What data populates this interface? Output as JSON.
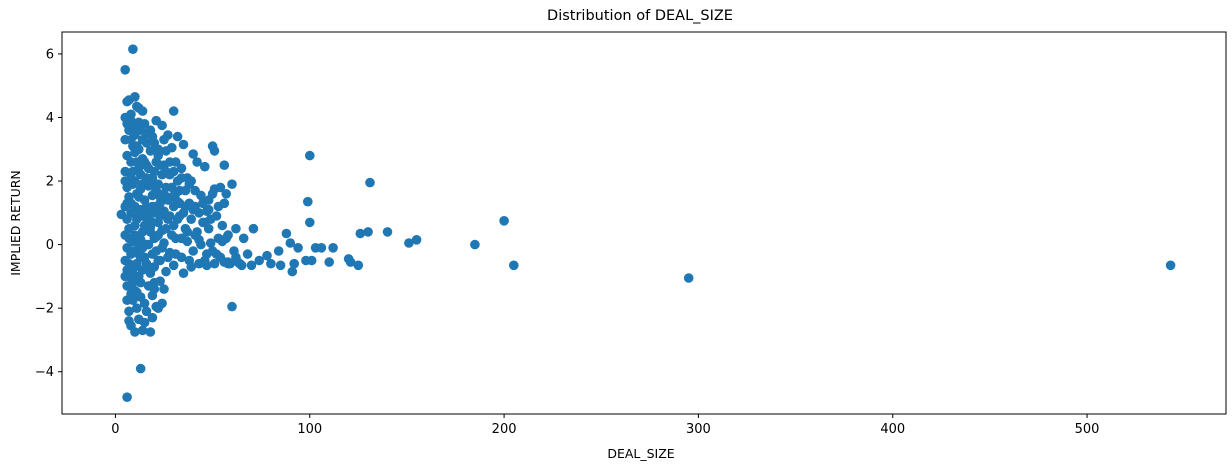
{
  "chart_data": {
    "type": "scatter",
    "title": "Distribution of DEAL_SIZE",
    "xlabel": "DEAL_SIZE",
    "ylabel": "IMPLIED RETURN",
    "xlim": [
      -27.5,
      571.5
    ],
    "ylim": [
      -5.33,
      6.69
    ],
    "xticks": [
      0,
      100,
      200,
      300,
      400,
      500
    ],
    "yticks": [
      -4,
      -2,
      0,
      2,
      4,
      6
    ],
    "ytick_labels": [
      "−4",
      "−2",
      "0",
      "2",
      "4",
      "6"
    ],
    "grid": false,
    "legend": "none",
    "marker_color": "#1f77b4",
    "points": [
      [
        3,
        0.95
      ],
      [
        5,
        5.5
      ],
      [
        6,
        4.5
      ],
      [
        7,
        4.55
      ],
      [
        9,
        6.15
      ],
      [
        10,
        4.65
      ],
      [
        11,
        4.35
      ],
      [
        12,
        4.3
      ],
      [
        8,
        4.1
      ],
      [
        14,
        4.2
      ],
      [
        6,
        -4.8
      ],
      [
        13,
        -3.9
      ],
      [
        8,
        -2.55
      ],
      [
        10,
        -2.75
      ],
      [
        14,
        -2.7
      ],
      [
        18,
        -2.75
      ],
      [
        12,
        -2.35
      ],
      [
        15,
        -2.45
      ],
      [
        19,
        -2.3
      ],
      [
        6,
        -1.75
      ],
      [
        9,
        -1.75
      ],
      [
        11,
        -2.0
      ],
      [
        15,
        -1.85
      ],
      [
        21,
        -1.95
      ],
      [
        24,
        -1.85
      ],
      [
        7,
        -2.1
      ],
      [
        8,
        -1.55
      ],
      [
        10,
        -1.45
      ],
      [
        13,
        -1.65
      ],
      [
        17,
        -1.3
      ],
      [
        20,
        -1.2
      ],
      [
        23,
        -1.15
      ],
      [
        25,
        -1.4
      ],
      [
        22,
        -2.0
      ],
      [
        6,
        3.8
      ],
      [
        7,
        3.6
      ],
      [
        8,
        3.9
      ],
      [
        9,
        3.75
      ],
      [
        10,
        3.45
      ],
      [
        11,
        3.7
      ],
      [
        12,
        3.85
      ],
      [
        13,
        3.6
      ],
      [
        15,
        3.8
      ],
      [
        16,
        3.5
      ],
      [
        19,
        3.4
      ],
      [
        21,
        3.9
      ],
      [
        24,
        3.75
      ],
      [
        27,
        3.45
      ],
      [
        30,
        4.2
      ],
      [
        32,
        3.4
      ],
      [
        29,
        3.05
      ],
      [
        35,
        3.15
      ],
      [
        50,
        3.1
      ],
      [
        51,
        2.95
      ],
      [
        6,
        2.8
      ],
      [
        8,
        2.6
      ],
      [
        10,
        2.9
      ],
      [
        12,
        2.4
      ],
      [
        14,
        2.7
      ],
      [
        16,
        2.5
      ],
      [
        18,
        2.95
      ],
      [
        20,
        2.3
      ],
      [
        22,
        2.8
      ],
      [
        25,
        2.5
      ],
      [
        28,
        2.2
      ],
      [
        31,
        2.6
      ],
      [
        34,
        2.4
      ],
      [
        40,
        2.85
      ],
      [
        42,
        2.6
      ],
      [
        46,
        2.45
      ],
      [
        56,
        2.5
      ],
      [
        37,
        2.1
      ],
      [
        26,
        2.95
      ],
      [
        6,
        1.8
      ],
      [
        7,
        1.5
      ],
      [
        9,
        1.9
      ],
      [
        11,
        1.6
      ],
      [
        13,
        1.75
      ],
      [
        15,
        1.4
      ],
      [
        17,
        1.85
      ],
      [
        19,
        1.55
      ],
      [
        21,
        1.7
      ],
      [
        23,
        1.3
      ],
      [
        26,
        1.8
      ],
      [
        29,
        1.5
      ],
      [
        33,
        1.7
      ],
      [
        38,
        1.9
      ],
      [
        41,
        1.7
      ],
      [
        44,
        1.55
      ],
      [
        48,
        1.4
      ],
      [
        51,
        1.75
      ],
      [
        54,
        1.8
      ],
      [
        57,
        1.6
      ],
      [
        60,
        1.9
      ],
      [
        32,
        1.35
      ],
      [
        36,
        1.2
      ],
      [
        47,
        1.05
      ],
      [
        6,
        0.8
      ],
      [
        7,
        0.5
      ],
      [
        8,
        1.0
      ],
      [
        10,
        0.6
      ],
      [
        12,
        0.9
      ],
      [
        14,
        0.4
      ],
      [
        16,
        0.85
      ],
      [
        18,
        0.55
      ],
      [
        20,
        1.0
      ],
      [
        22,
        0.7
      ],
      [
        24,
        0.45
      ],
      [
        27,
        0.8
      ],
      [
        30,
        0.6
      ],
      [
        33,
        0.9
      ],
      [
        36,
        0.5
      ],
      [
        39,
        0.8
      ],
      [
        42,
        0.4
      ],
      [
        45,
        0.7
      ],
      [
        48,
        0.5
      ],
      [
        52,
        0.9
      ],
      [
        55,
        0.6
      ],
      [
        58,
        0.3
      ],
      [
        62,
        0.5
      ],
      [
        66,
        0.2
      ],
      [
        71,
        0.5
      ],
      [
        25,
        1.05
      ],
      [
        40,
        1.1
      ],
      [
        6,
        -0.1
      ],
      [
        7,
        0.2
      ],
      [
        8,
        -0.3
      ],
      [
        9,
        0.1
      ],
      [
        11,
        -0.2
      ],
      [
        13,
        0.15
      ],
      [
        15,
        -0.4
      ],
      [
        17,
        0.0
      ],
      [
        19,
        -0.3
      ],
      [
        21,
        0.25
      ],
      [
        23,
        -0.5
      ],
      [
        25,
        0.05
      ],
      [
        28,
        -0.25
      ],
      [
        31,
        0.2
      ],
      [
        34,
        -0.4
      ],
      [
        37,
        0.1
      ],
      [
        40,
        -0.2
      ],
      [
        43,
        0.15
      ],
      [
        46,
        -0.5
      ],
      [
        49,
        0.05
      ],
      [
        52,
        -0.3
      ],
      [
        55,
        0.1
      ],
      [
        58,
        -0.55
      ],
      [
        61,
        -0.2
      ],
      [
        64,
        -0.6
      ],
      [
        68,
        -0.3
      ],
      [
        6,
        -0.8
      ],
      [
        7,
        -0.6
      ],
      [
        9,
        -0.9
      ],
      [
        10,
        -0.7
      ],
      [
        12,
        -1.0
      ],
      [
        14,
        -0.8
      ],
      [
        16,
        -0.6
      ],
      [
        18,
        -0.9
      ],
      [
        20,
        -0.7
      ],
      [
        22,
        -0.5
      ],
      [
        26,
        -0.85
      ],
      [
        30,
        -0.65
      ],
      [
        35,
        -0.9
      ],
      [
        39,
        -0.7
      ],
      [
        43,
        -0.6
      ],
      [
        47,
        -0.65
      ],
      [
        51,
        -0.6
      ],
      [
        56,
        -0.55
      ],
      [
        59,
        -0.6
      ],
      [
        65,
        -0.65
      ],
      [
        70,
        -0.65
      ],
      [
        74,
        -0.5
      ],
      [
        78,
        -0.35
      ],
      [
        80,
        -0.6
      ],
      [
        84,
        -0.2
      ],
      [
        85,
        -0.65
      ],
      [
        88,
        0.35
      ],
      [
        90,
        0.05
      ],
      [
        91,
        -0.85
      ],
      [
        92,
        -0.6
      ],
      [
        94,
        -0.1
      ],
      [
        98,
        -0.5
      ],
      [
        99,
        1.35
      ],
      [
        100,
        2.8
      ],
      [
        100,
        0.7
      ],
      [
        101,
        -0.5
      ],
      [
        103,
        -0.1
      ],
      [
        106,
        -0.1
      ],
      [
        110,
        -0.55
      ],
      [
        112,
        -0.1
      ],
      [
        120,
        -0.45
      ],
      [
        121,
        -0.55
      ],
      [
        125,
        -0.65
      ],
      [
        126,
        0.35
      ],
      [
        130,
        0.4
      ],
      [
        131,
        1.95
      ],
      [
        140,
        0.4
      ],
      [
        151,
        0.05
      ],
      [
        155,
        0.15
      ],
      [
        185,
        0.0
      ],
      [
        200,
        0.75
      ],
      [
        205,
        -0.65
      ],
      [
        295,
        -1.05
      ],
      [
        543,
        -0.65
      ],
      [
        60,
        -1.95
      ],
      [
        58,
        -0.6
      ],
      [
        63,
        -0.55
      ],
      [
        5,
        4.0
      ],
      [
        5,
        2.3
      ],
      [
        5,
        1.2
      ],
      [
        5,
        0.3
      ],
      [
        5,
        -0.5
      ],
      [
        5,
        -1.0
      ],
      [
        5,
        3.3
      ],
      [
        5,
        2.0
      ],
      [
        6,
        1.3
      ],
      [
        6,
        -1.3
      ],
      [
        8,
        3.3
      ],
      [
        8,
        2.1
      ],
      [
        8,
        1.3
      ],
      [
        8,
        0.2
      ],
      [
        8,
        -0.9
      ],
      [
        9,
        3.1
      ],
      [
        9,
        2.3
      ],
      [
        9,
        1.0
      ],
      [
        9,
        -0.2
      ],
      [
        10,
        2.0
      ],
      [
        10,
        1.2
      ],
      [
        10,
        0.3
      ],
      [
        10,
        -1.1
      ],
      [
        11,
        3.1
      ],
      [
        11,
        2.6
      ],
      [
        11,
        0.8
      ],
      [
        11,
        -0.6
      ],
      [
        12,
        3.0
      ],
      [
        12,
        1.5
      ],
      [
        12,
        0.0
      ],
      [
        13,
        2.2
      ],
      [
        13,
        1.1
      ],
      [
        13,
        -0.4
      ],
      [
        14,
        3.3
      ],
      [
        14,
        1.9
      ],
      [
        14,
        0.9
      ],
      [
        14,
        -0.1
      ],
      [
        15,
        2.6
      ],
      [
        15,
        1.1
      ],
      [
        15,
        0.6
      ],
      [
        16,
        3.2
      ],
      [
        16,
        2.1
      ],
      [
        16,
        1.2
      ],
      [
        16,
        0.0
      ],
      [
        17,
        2.4
      ],
      [
        17,
        1.0
      ],
      [
        17,
        -0.7
      ],
      [
        18,
        3.6
      ],
      [
        18,
        1.9
      ],
      [
        18,
        0.4
      ],
      [
        19,
        2.1
      ],
      [
        19,
        1.2
      ],
      [
        19,
        0.7
      ],
      [
        20,
        3.2
      ],
      [
        20,
        1.6
      ],
      [
        20,
        0.2
      ],
      [
        21,
        2.6
      ],
      [
        21,
        1.2
      ],
      [
        21,
        -0.2
      ],
      [
        22,
        3.0
      ],
      [
        22,
        1.9
      ],
      [
        22,
        0.3
      ],
      [
        23,
        2.5
      ],
      [
        23,
        1.5
      ],
      [
        23,
        0.9
      ],
      [
        24,
        2.2
      ],
      [
        24,
        1.0
      ],
      [
        24,
        -0.1
      ],
      [
        25,
        3.3
      ],
      [
        25,
        1.6
      ],
      [
        26,
        2.3
      ],
      [
        26,
        0.5
      ],
      [
        27,
        1.4
      ],
      [
        27,
        -0.4
      ],
      [
        28,
        2.6
      ],
      [
        28,
        0.9
      ],
      [
        29,
        1.8
      ],
      [
        29,
        0.3
      ],
      [
        30,
        2.3
      ],
      [
        30,
        1.2
      ],
      [
        31,
        1.6
      ],
      [
        31,
        -0.3
      ],
      [
        32,
        2.0
      ],
      [
        32,
        0.8
      ],
      [
        33,
        1.3
      ],
      [
        34,
        2.1
      ],
      [
        34,
        0.2
      ],
      [
        35,
        1.0
      ],
      [
        36,
        1.7
      ],
      [
        37,
        0.4
      ],
      [
        38,
        1.3
      ],
      [
        38,
        -0.5
      ],
      [
        39,
        2.0
      ],
      [
        41,
        1.2
      ],
      [
        41,
        0.3
      ],
      [
        43,
        1.0
      ],
      [
        44,
        0.0
      ],
      [
        45,
        1.3
      ],
      [
        46,
        0.7
      ],
      [
        47,
        -0.3
      ],
      [
        48,
        1.1
      ],
      [
        49,
        0.8
      ],
      [
        50,
        1.6
      ],
      [
        50,
        -0.2
      ],
      [
        53,
        1.2
      ],
      [
        53,
        0.2
      ],
      [
        54,
        -0.4
      ],
      [
        56,
        1.3
      ],
      [
        57,
        0.2
      ],
      [
        62,
        -0.4
      ],
      [
        7,
        -2.4
      ],
      [
        16,
        -2.1
      ],
      [
        11,
        -1.5
      ],
      [
        13,
        -1.2
      ],
      [
        19,
        -1.6
      ],
      [
        9,
        -1.2
      ],
      [
        7,
        -1.0
      ],
      [
        12,
        -0.3
      ],
      [
        17,
        0.8
      ],
      [
        20,
        -1.4
      ]
    ]
  }
}
